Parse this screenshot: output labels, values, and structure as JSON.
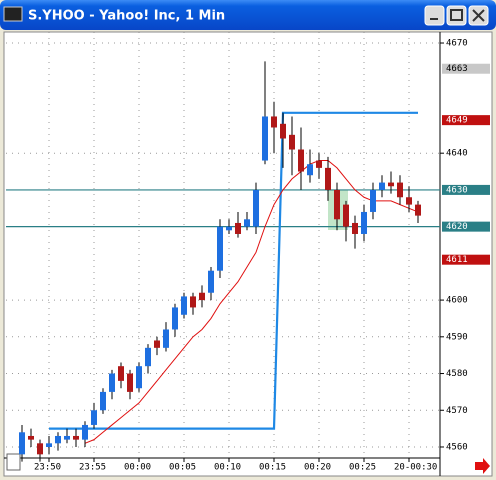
{
  "chart_data": {
    "type": "candlestick",
    "title": "S.YHOO - Yahoo! Inc, 1 Min",
    "categories": [
      null,
      null,
      null,
      "23:50",
      null,
      null,
      null,
      null,
      "23:55",
      null,
      null,
      null,
      null,
      "00:00",
      null,
      null,
      null,
      null,
      "00:05",
      null,
      null,
      null,
      null,
      "00:10",
      null,
      null,
      null,
      null,
      "00:15",
      null,
      null,
      null,
      null,
      "00:20",
      null,
      null,
      null,
      null,
      "00:25",
      null,
      null,
      null,
      null,
      "20-00:30",
      null
    ],
    "open": [
      4558,
      4563,
      4561,
      4560,
      4561,
      4562,
      4563,
      4562,
      4566,
      4570,
      4575,
      4582,
      4580,
      4576,
      4582,
      4589,
      4587,
      4592,
      4596,
      4601,
      4602,
      4602,
      4608,
      4619,
      4621,
      4620,
      4620,
      4638,
      4650,
      4648,
      4645,
      4641,
      4634,
      4638,
      4636,
      4630,
      4626,
      4621,
      4618,
      4624,
      4630,
      4632,
      4632,
      4628,
      4626
    ],
    "high": [
      4566,
      4565,
      4562,
      4563,
      4564,
      4565,
      4565,
      4567,
      4572,
      4576,
      4581,
      4583,
      4581,
      4583,
      4588,
      4590,
      4594,
      4599,
      4602,
      4602,
      4604,
      4609,
      4622,
      4622,
      4624,
      4624,
      4632,
      4665,
      4654,
      4651,
      4650,
      4647,
      4641,
      4640,
      4639,
      4632,
      4627,
      4623,
      4626,
      4632,
      4634,
      4635,
      4634,
      4631,
      4627
    ],
    "low": [
      4556,
      4560,
      4556,
      4558,
      4559,
      4561,
      4560,
      4560,
      4565,
      4569,
      4573,
      4576,
      4573,
      4575,
      4580,
      4585,
      4586,
      4590,
      4595,
      4596,
      4598,
      4600,
      4606,
      4618,
      4617,
      4619,
      4618,
      4637,
      4640,
      4636,
      4634,
      4630,
      4632,
      4633,
      4627,
      4619,
      4616,
      4614,
      4616,
      4622,
      4628,
      4629,
      4626,
      4624,
      4621
    ],
    "close": [
      4564,
      4562,
      4558,
      4561,
      4563,
      4563,
      4562,
      4566,
      4570,
      4575,
      4580,
      4578,
      4575,
      4582,
      4587,
      4587,
      4592,
      4598,
      4601,
      4598,
      4600,
      4608,
      4620,
      4620,
      4618,
      4622,
      4630,
      4650,
      4647,
      4644,
      4641,
      4635,
      4637,
      4636,
      4630,
      4622,
      4620,
      4618,
      4624,
      4630,
      4632,
      4631,
      4628,
      4626,
      4623
    ],
    "up_color": "#1e6fe0",
    "down_color": "#b01818",
    "lines": [
      {
        "color": "#1e88e5",
        "values": [
          null,
          null,
          null,
          4565,
          4565,
          4565,
          4565,
          4565,
          4565,
          4565,
          4565,
          4565,
          4565,
          4565,
          4565,
          4565,
          4565,
          4565,
          4565,
          4565,
          4565,
          4565,
          4565,
          4565,
          4565,
          4565,
          4565,
          4565,
          4565,
          4651,
          4651,
          4651,
          4651,
          4651,
          4651,
          4651,
          4651,
          4651,
          4651,
          4651,
          4651,
          4651,
          4651,
          4651,
          4651
        ]
      },
      {
        "color": "#e01010",
        "values": [
          null,
          null,
          null,
          null,
          null,
          null,
          null,
          4561,
          4562,
          4564,
          4566,
          4568,
          4570,
          4572,
          4575,
          4578,
          4581,
          4584,
          4587,
          4590,
          4592,
          4595,
          4599,
          4602,
          4605,
          4609,
          4613,
          4620,
          4626,
          4630,
          4633,
          4635,
          4637,
          4638,
          4638,
          4636,
          4633,
          4630,
          4628,
          4627,
          4627,
          4627,
          4626,
          4625,
          4624
        ]
      }
    ],
    "levels": [
      {
        "value": 4630,
        "color": "#2a7f86"
      },
      {
        "value": 4620,
        "color": "#2a7f86"
      }
    ],
    "price_markers": [
      {
        "value": 4663,
        "color": "#c8c8c8",
        "text_color": "#000000"
      },
      {
        "value": 4649,
        "color": "#c01010",
        "text_color": "#ffffff"
      },
      {
        "value": 4630,
        "color": "#2a7f86",
        "text_color": "#ffffff"
      },
      {
        "value": 4620,
        "color": "#2a7f86",
        "text_color": "#ffffff"
      },
      {
        "value": 4611,
        "color": "#c01010",
        "text_color": "#ffffff"
      }
    ],
    "ylim": [
      4557,
      4673
    ],
    "yticks": [
      4670,
      4640,
      4600,
      4590,
      4580,
      4570,
      4560
    ],
    "grid": true
  }
}
